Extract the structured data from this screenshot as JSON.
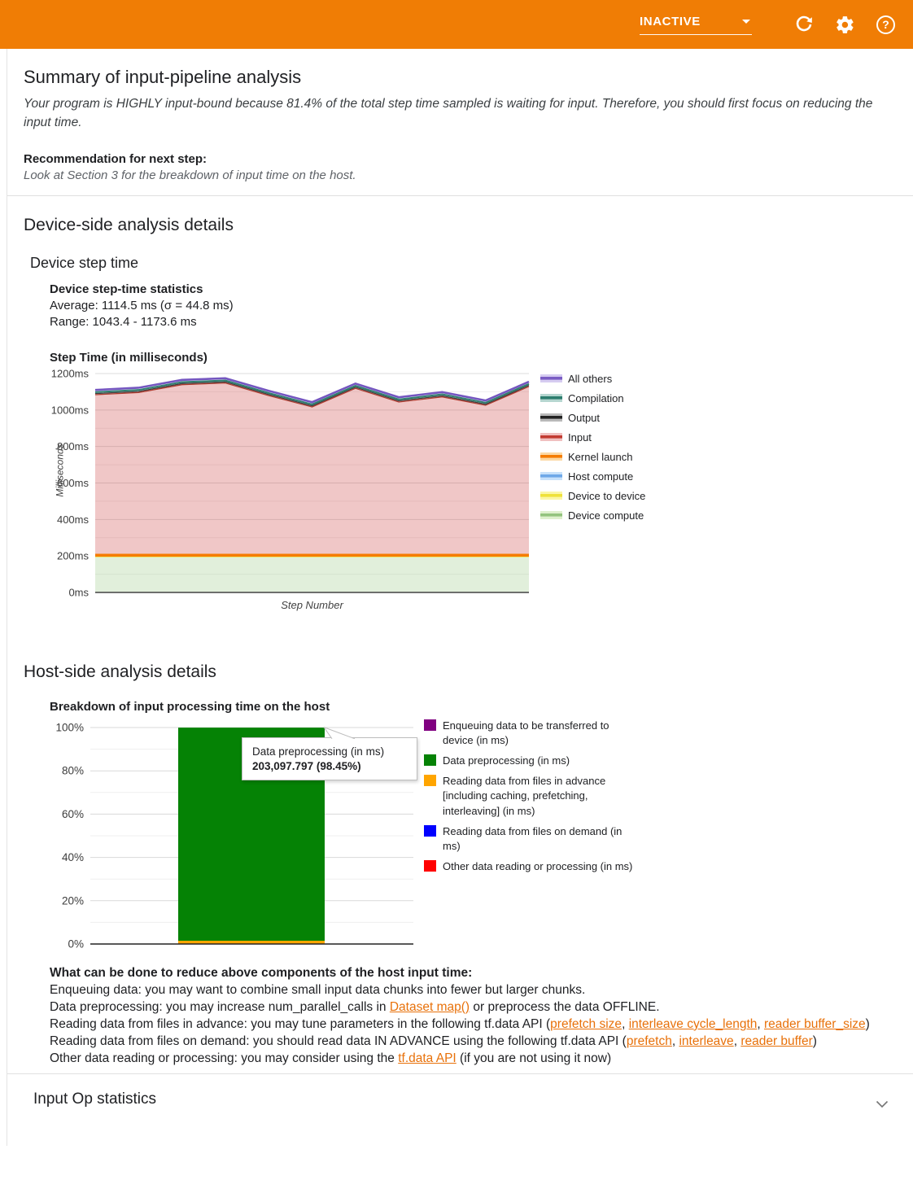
{
  "app_bar": {
    "status_label": "INACTIVE",
    "bar_color": "#f07d05"
  },
  "summary": {
    "title": "Summary of input-pipeline analysis",
    "body": "Your program is HIGHLY input-bound because 81.4% of the total step time sampled is waiting for input. Therefore, you should first focus on reducing the input time.",
    "recommendation_label": "Recommendation for next step:",
    "recommendation": "Look at Section 3 for the breakdown of input time on the host."
  },
  "device_section": {
    "title": "Device-side analysis details",
    "subtitle": "Device step time",
    "stats_title": "Device step-time statistics",
    "average": "Average: 1114.5 ms (σ = 44.8 ms)",
    "range": "Range: 1043.4 - 1173.6 ms"
  },
  "host_section": {
    "title": "Host-side analysis details",
    "advice_title": "What can be done to reduce above components of the host input time:",
    "advice_lines": [
      [
        {
          "text": "Enqueuing data: you may want to combine small input data chunks into fewer but larger chunks.",
          "link": false
        }
      ],
      [
        {
          "text": "Data preprocessing: you may increase num_parallel_calls in ",
          "link": false
        },
        {
          "text": "Dataset map()",
          "link": true
        },
        {
          "text": " or preprocess the data OFFLINE.",
          "link": false
        }
      ],
      [
        {
          "text": "Reading data from files in advance: you may tune parameters in the following tf.data API (",
          "link": false
        },
        {
          "text": "prefetch size",
          "link": true
        },
        {
          "text": ", ",
          "link": false
        },
        {
          "text": "interleave cycle_length",
          "link": true
        },
        {
          "text": ", ",
          "link": false
        },
        {
          "text": "reader buffer_size",
          "link": true
        },
        {
          "text": ")",
          "link": false
        }
      ],
      [
        {
          "text": "Reading data from files on demand: you should read data IN ADVANCE using the following tf.data API (",
          "link": false
        },
        {
          "text": "prefetch",
          "link": true
        },
        {
          "text": ", ",
          "link": false
        },
        {
          "text": "interleave",
          "link": true
        },
        {
          "text": ", ",
          "link": false
        },
        {
          "text": "reader buffer",
          "link": true
        },
        {
          "text": ")",
          "link": false
        }
      ],
      [
        {
          "text": "Other data reading or processing: you may consider using the ",
          "link": false
        },
        {
          "text": "tf.data API",
          "link": true
        },
        {
          "text": " (if you are not using it now)",
          "link": false
        }
      ]
    ]
  },
  "input_op_section": {
    "title": "Input Op statistics"
  },
  "chart_data": [
    {
      "type": "area",
      "title": "Step Time (in milliseconds)",
      "xlabel": "Step Number",
      "ylabel": "Milliseconds",
      "ylim": [
        0,
        1200
      ],
      "y_ticks": [
        "0ms",
        "200ms",
        "400ms",
        "600ms",
        "800ms",
        "1000ms",
        "1200ms"
      ],
      "grid": "horizontal, minor lines every 100ms",
      "legend_position": "right",
      "total_step_time_ms": [
        1110,
        1122,
        1165,
        1174,
        1105,
        1043,
        1145,
        1070,
        1098,
        1052,
        1155
      ],
      "layers_ms": {
        "device_compute": 196,
        "device_to_device": 2,
        "host_compute": 2,
        "kernel_launch": 8,
        "input": "total minus other layers (dominant ~870-940ms band)",
        "output": 6,
        "compilation": 8,
        "all_others": 12
      },
      "legend": [
        {
          "label": "All others",
          "line": "#7a5cc4",
          "fill": "#d6ccf1"
        },
        {
          "label": "Compilation",
          "line": "#2c7d6e",
          "fill": "#b5d6d0"
        },
        {
          "label": "Output",
          "line": "#222222",
          "fill": "#b9b9b9"
        },
        {
          "label": "Input",
          "line": "#c23b31",
          "fill": "#f0bfbf"
        },
        {
          "label": "Kernel launch",
          "line": "#f57c00",
          "fill": "#fcd9a4"
        },
        {
          "label": "Host compute",
          "line": "#6ea8e8",
          "fill": "#c7e1fa"
        },
        {
          "label": "Device to device",
          "line": "#efe23a",
          "fill": "#fbf6a6"
        },
        {
          "label": "Device compute",
          "line": "#94c47e",
          "fill": "#def0cd"
        }
      ]
    },
    {
      "type": "bar",
      "title": "Breakdown of input processing time on the host",
      "y_ticks": [
        "0%",
        "20%",
        "40%",
        "60%",
        "80%",
        "100%"
      ],
      "ylim": [
        0,
        100
      ],
      "grid": "horizontal, minor lines every 10%",
      "legend_position": "right",
      "stack_bottom_to_top": [
        {
          "label": "Other data reading or processing (in ms)",
          "color": "#ff0000",
          "pct": 0.03
        },
        {
          "label": "Reading data from files on demand (in ms)",
          "color": "#0000ff",
          "pct": 0.02
        },
        {
          "label": "Reading data from files in advance [including caching, prefetching, interleaving] (in ms)",
          "color": "#ffa500",
          "pct": 1.45
        },
        {
          "label": "Data preprocessing (in ms)",
          "color": "#058205",
          "pct": 98.45
        },
        {
          "label": "Enqueuing data to be transferred to device (in ms)",
          "color": "#800080",
          "pct": 0.05
        }
      ],
      "legend": [
        {
          "label": "Enqueuing data to be transferred to device (in ms)",
          "color": "#800080"
        },
        {
          "label": "Data preprocessing (in ms)",
          "color": "#058205"
        },
        {
          "label": "Reading data from files in advance [including caching, prefetching, interleaving] (in ms)",
          "color": "#ffa500"
        },
        {
          "label": "Reading data from files on demand (in ms)",
          "color": "#0000ff"
        },
        {
          "label": "Other data reading or processing (in ms)",
          "color": "#ff0000"
        }
      ],
      "tooltip": {
        "label": "Data preprocessing (in ms)",
        "value": "203,097.797 (98.45%)"
      }
    }
  ]
}
